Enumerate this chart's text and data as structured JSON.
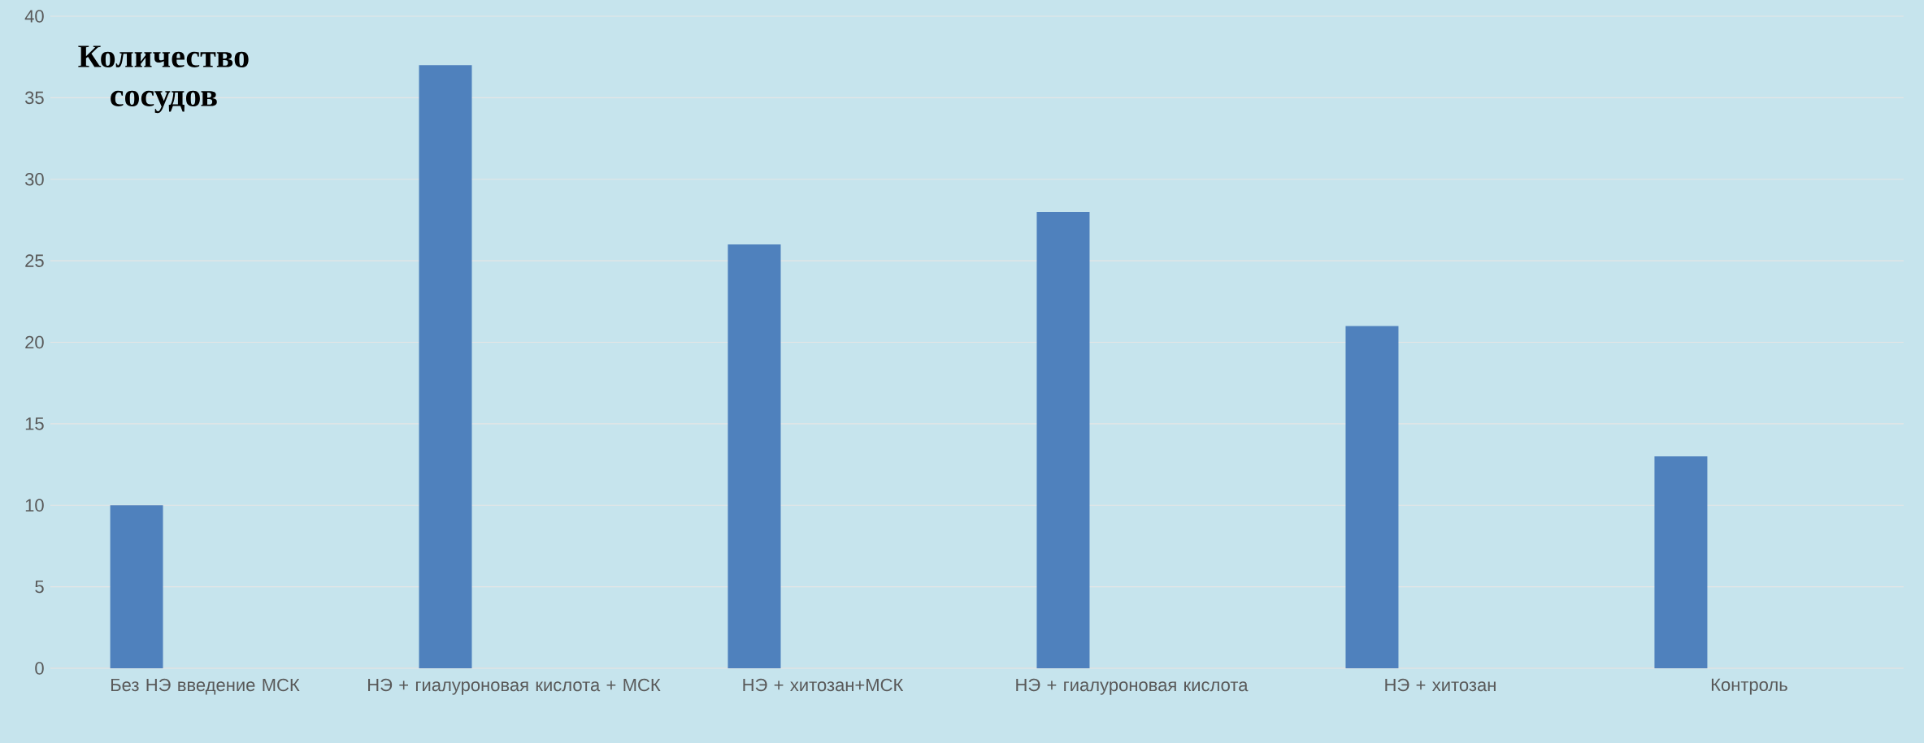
{
  "chart_data": {
    "type": "bar",
    "ylabel": "Количество сосудов",
    "categories": [
      "Без НЭ введение МСК",
      "НЭ + гиалуроновая кислота + МСК",
      "НЭ + хитозан+МСК",
      "НЭ + гиалуроновая кислота",
      "НЭ + хитозан",
      "Контроль"
    ],
    "values": [
      10,
      37,
      26,
      28,
      21,
      13
    ],
    "color": "#4f81bd",
    "ylim": [
      0,
      40
    ],
    "yticks": [
      0,
      5,
      10,
      15,
      20,
      25,
      30,
      35,
      40
    ],
    "grid": "y"
  }
}
